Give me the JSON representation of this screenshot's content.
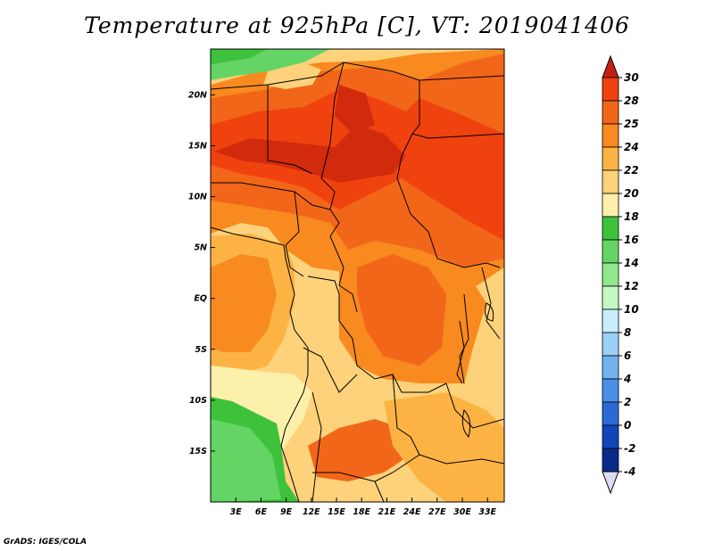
{
  "title": "Temperature at 925hPa [C], VT: 2019041406",
  "credit": "GrADS: IGES/COLA",
  "map": {
    "lon_range": [
      0,
      35
    ],
    "lat_range": [
      -20,
      24.5
    ],
    "x_ticks": [
      "3E",
      "6E",
      "9E",
      "12E",
      "15E",
      "18E",
      "21E",
      "24E",
      "27E",
      "30E",
      "33E"
    ],
    "y_ticks": [
      "20N",
      "15N",
      "10N",
      "5N",
      "EQ",
      "5S",
      "10S",
      "15S"
    ]
  },
  "colorbar": {
    "unit": "C",
    "levels": [
      "30",
      "28",
      "25",
      "24",
      "22",
      "20",
      "18",
      "16",
      "14",
      "12",
      "10",
      "8",
      "6",
      "4",
      "2",
      "0",
      "-2",
      "-4"
    ],
    "colors": [
      "#d22a0c",
      "#f0420f",
      "#f2661a",
      "#f88a1f",
      "#fcb344",
      "#fdd27a",
      "#fdf0ab",
      "#3ec23c",
      "#64d564",
      "#90e88c",
      "#c5f7c2",
      "#c8edfb",
      "#9cd1f6",
      "#72b3ef",
      "#4a8ee6",
      "#2a6ad4",
      "#1145ba",
      "#0a2a8a",
      "#0a1255"
    ],
    "top_arrow_color": "#c42010",
    "bottom_arrow_color": "#dcdcf6"
  }
}
